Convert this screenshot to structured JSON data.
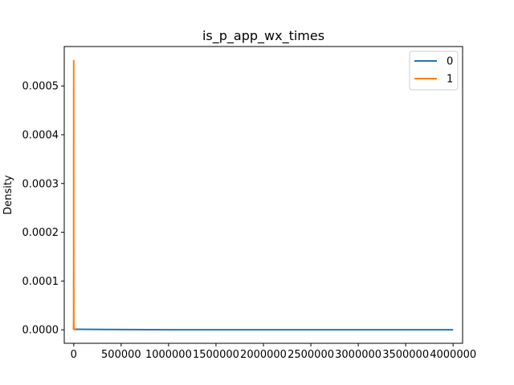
{
  "chart_data": {
    "type": "line",
    "title": "is_p_app_wx_times",
    "xlabel": "",
    "ylabel": "Density",
    "xlim": [
      -100000,
      4100000
    ],
    "ylim": [
      -2.77e-05,
      0.0005809
    ],
    "xticks": [
      0,
      500000,
      1000000,
      1500000,
      2000000,
      2500000,
      3000000,
      3500000,
      4000000
    ],
    "yticks": [
      0.0,
      0.0001,
      0.0002,
      0.0003,
      0.0004,
      0.0005
    ],
    "xtick_labels": [
      "0",
      "500000",
      "1000000",
      "1500000",
      "2000000",
      "2500000",
      "3000000",
      "3500000",
      "4000000"
    ],
    "ytick_labels": [
      "0.0000",
      "0.0001",
      "0.0002",
      "0.0003",
      "0.0004",
      "0.0005"
    ],
    "grid": false,
    "legend": "top-right",
    "series": [
      {
        "name": "0",
        "color": "#1f77b4",
        "x": [
          -1000,
          0,
          1000000,
          2000000,
          3000000,
          4000000
        ],
        "y": [
          0,
          1e-06,
          0,
          0,
          0,
          0
        ]
      },
      {
        "name": "1",
        "color": "#ff7f0e",
        "x": [
          -2000,
          -1000,
          -500,
          0,
          500,
          1000,
          2000,
          5000,
          10000,
          20000
        ],
        "y": [
          0,
          2e-05,
          0.00018,
          0.000552,
          0.00018,
          2e-05,
          5e-06,
          2e-06,
          5e-07,
          0
        ]
      }
    ]
  }
}
